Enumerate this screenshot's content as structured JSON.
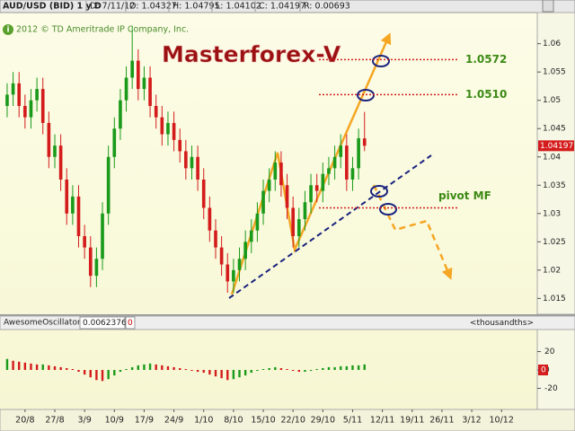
{
  "header": {
    "symbol": "AUD/USD (BID) 1 y D",
    "fields": [
      "D: 7/11/12",
      "O: 1.04327",
      "H: 1.04795",
      "L: 1.04102",
      "C: 1.04197",
      "R: 0.00693"
    ]
  },
  "chart_data": [
    {
      "type": "candlestick",
      "title": "Masterforex-V",
      "copyright": "2012 © TD Ameritrade IP Company, Inc.",
      "open": [
        1.049,
        1.051,
        1.053,
        1.049,
        1.047,
        1.05,
        1.052,
        1.046,
        1.04,
        1.042,
        1.036,
        1.03,
        1.033,
        1.026,
        1.024,
        1.019,
        1.022,
        1.03,
        1.04,
        1.045,
        1.05,
        1.054,
        1.057,
        1.052,
        1.054,
        1.049,
        1.047,
        1.044,
        1.046,
        1.043,
        1.041,
        1.038,
        1.04,
        1.036,
        1.031,
        1.027,
        1.024,
        1.021,
        1.018,
        1.02,
        1.022,
        1.025,
        1.027,
        1.03,
        1.034,
        1.036,
        1.039,
        1.035,
        1.031,
        1.026,
        1.029,
        1.032,
        1.035,
        1.034,
        1.037,
        1.038,
        1.04,
        1.042,
        1.036,
        1.038,
        1.04327
      ],
      "high": [
        1.053,
        1.055,
        1.055,
        1.051,
        1.052,
        1.054,
        1.054,
        1.048,
        1.044,
        1.044,
        1.038,
        1.035,
        1.035,
        1.028,
        1.026,
        1.024,
        1.032,
        1.042,
        1.047,
        1.052,
        1.056,
        1.063,
        1.059,
        1.056,
        1.056,
        1.051,
        1.049,
        1.048,
        1.048,
        1.045,
        1.043,
        1.042,
        1.042,
        1.038,
        1.033,
        1.029,
        1.026,
        1.023,
        1.022,
        1.024,
        1.027,
        1.029,
        1.032,
        1.036,
        1.038,
        1.041,
        1.041,
        1.037,
        1.033,
        1.031,
        1.034,
        1.037,
        1.037,
        1.039,
        1.04,
        1.042,
        1.044,
        1.044,
        1.04,
        1.045,
        1.04795
      ],
      "low": [
        1.047,
        1.049,
        1.047,
        1.045,
        1.045,
        1.048,
        1.044,
        1.038,
        1.038,
        1.034,
        1.028,
        1.028,
        1.024,
        1.022,
        1.017,
        1.017,
        1.02,
        1.028,
        1.038,
        1.043,
        1.048,
        1.052,
        1.05,
        1.05,
        1.047,
        1.045,
        1.042,
        1.042,
        1.041,
        1.039,
        1.036,
        1.036,
        1.034,
        1.029,
        1.025,
        1.022,
        1.019,
        1.016,
        1.016,
        1.018,
        1.02,
        1.023,
        1.025,
        1.028,
        1.032,
        1.034,
        1.033,
        1.029,
        1.024,
        1.024,
        1.027,
        1.03,
        1.032,
        1.032,
        1.035,
        1.036,
        1.038,
        1.034,
        1.034,
        1.036,
        1.04102
      ],
      "close": [
        1.051,
        1.053,
        1.049,
        1.047,
        1.05,
        1.052,
        1.046,
        1.04,
        1.042,
        1.036,
        1.03,
        1.033,
        1.026,
        1.024,
        1.019,
        1.022,
        1.03,
        1.04,
        1.045,
        1.05,
        1.054,
        1.057,
        1.052,
        1.054,
        1.049,
        1.047,
        1.044,
        1.046,
        1.043,
        1.041,
        1.038,
        1.04,
        1.036,
        1.031,
        1.027,
        1.024,
        1.021,
        1.018,
        1.02,
        1.022,
        1.025,
        1.027,
        1.03,
        1.034,
        1.036,
        1.039,
        1.035,
        1.031,
        1.026,
        1.029,
        1.032,
        1.035,
        1.034,
        1.037,
        1.038,
        1.04,
        1.042,
        1.036,
        1.038,
        1.0433,
        1.04197
      ],
      "up_color": "#1a9a1a",
      "down_color": "#d41c1c",
      "xlim": [
        -1.2,
        89
      ],
      "ylim": [
        1.0122,
        1.0655
      ],
      "yticks": [
        1.015,
        1.02,
        1.025,
        1.03,
        1.035,
        1.04,
        1.045,
        1.05,
        1.055,
        1.06
      ],
      "xticks": [
        {
          "value": 3,
          "label": "20/8"
        },
        {
          "value": 8,
          "label": "27/8"
        },
        {
          "value": 13,
          "label": "3/9"
        },
        {
          "value": 18,
          "label": "10/9"
        },
        {
          "value": 23,
          "label": "17/9"
        },
        {
          "value": 28,
          "label": "24/9"
        },
        {
          "value": 33,
          "label": "1/10"
        },
        {
          "value": 38,
          "label": "8/10"
        },
        {
          "value": 43,
          "label": "15/10"
        },
        {
          "value": 48,
          "label": "22/10"
        },
        {
          "value": 53,
          "label": "29/10"
        },
        {
          "value": 58,
          "label": "5/11"
        },
        {
          "value": 63,
          "label": "12/11"
        },
        {
          "value": 68,
          "label": "19/11"
        },
        {
          "value": 73,
          "label": "26/11"
        },
        {
          "value": 78,
          "label": "3/12"
        },
        {
          "value": 83,
          "label": "10/12"
        }
      ],
      "levels": [
        {
          "value": 1.0572,
          "label": "1.0572"
        },
        {
          "value": 1.051,
          "label": "1.0510"
        },
        {
          "value": 1.031,
          "label": "pivot MF"
        }
      ]
    },
    {
      "type": "bar",
      "name": "AwesomeOscillator",
      "indicator_value": "0.0062376",
      "value_label": "0",
      "unit_label": "<thousandths>",
      "values": [
        12,
        10,
        9,
        8,
        7,
        6,
        6,
        5,
        4,
        3,
        2,
        1,
        -2,
        -5,
        -8,
        -11,
        -12,
        -10,
        -6,
        -2,
        1,
        3,
        5,
        6,
        7,
        6,
        5,
        4,
        3,
        2,
        1,
        -1,
        -2,
        -3,
        -5,
        -7,
        -9,
        -11,
        -10,
        -8,
        -6,
        -3,
        -1,
        1,
        2,
        3,
        2,
        1,
        -1,
        -2,
        -2,
        -1,
        1,
        2,
        3,
        3,
        4,
        4,
        5,
        5,
        6
      ],
      "up_color": "#1a9a1a",
      "down_color": "#d41c1c",
      "ylim": [
        -43,
        44
      ],
      "yticks": [
        20,
        0,
        -20
      ]
    }
  ]
}
